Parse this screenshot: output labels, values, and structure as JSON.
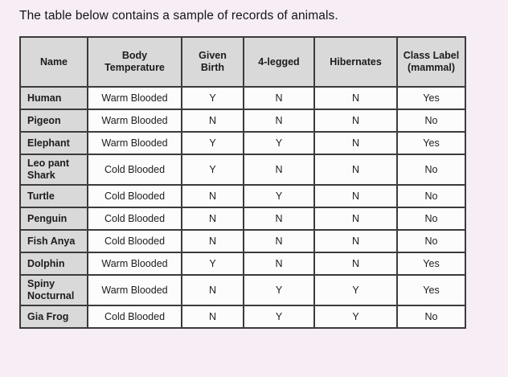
{
  "page": {
    "title": "The table below contains a sample of records of animals.",
    "background_color": "#f6eef4"
  },
  "table": {
    "header_background": "#d9d9d9",
    "border_color": "#3b3b3b",
    "columns": [
      "Name",
      "Body Temperature",
      "Given Birth",
      "4-legged",
      "Hibernates",
      "Class Label (mammal)"
    ],
    "rows": [
      {
        "name": "Human",
        "body_temperature": "Warm Blooded",
        "given_birth": "Y",
        "four_legged": "N",
        "hibernates": "N",
        "class_label": "Yes"
      },
      {
        "name": "Pigeon",
        "body_temperature": "Warm Blooded",
        "given_birth": "N",
        "four_legged": "N",
        "hibernates": "N",
        "class_label": "No"
      },
      {
        "name": "Elephant",
        "body_temperature": "Warm Blooded",
        "given_birth": "Y",
        "four_legged": "Y",
        "hibernates": "N",
        "class_label": "Yes"
      },
      {
        "name": "Leo pant Shark",
        "body_temperature": "Cold Blooded",
        "given_birth": "Y",
        "four_legged": "N",
        "hibernates": "N",
        "class_label": "No"
      },
      {
        "name": "Turtle",
        "body_temperature": "Cold Blooded",
        "given_birth": "N",
        "four_legged": "Y",
        "hibernates": "N",
        "class_label": "No"
      },
      {
        "name": "Penguin",
        "body_temperature": "Cold Blooded",
        "given_birth": "N",
        "four_legged": "N",
        "hibernates": "N",
        "class_label": "No"
      },
      {
        "name": "Fish Anya",
        "body_temperature": "Cold Blooded",
        "given_birth": "N",
        "four_legged": "N",
        "hibernates": "N",
        "class_label": "No"
      },
      {
        "name": "Dolphin",
        "body_temperature": "Warm Blooded",
        "given_birth": "Y",
        "four_legged": "N",
        "hibernates": "N",
        "class_label": "Yes"
      },
      {
        "name": "Spiny Nocturnal",
        "body_temperature": "Warm Blooded",
        "given_birth": "N",
        "four_legged": "Y",
        "hibernates": "Y",
        "class_label": "Yes"
      },
      {
        "name": "Gia Frog",
        "body_temperature": "Cold Blooded",
        "given_birth": "N",
        "four_legged": "Y",
        "hibernates": "Y",
        "class_label": "No"
      }
    ]
  }
}
